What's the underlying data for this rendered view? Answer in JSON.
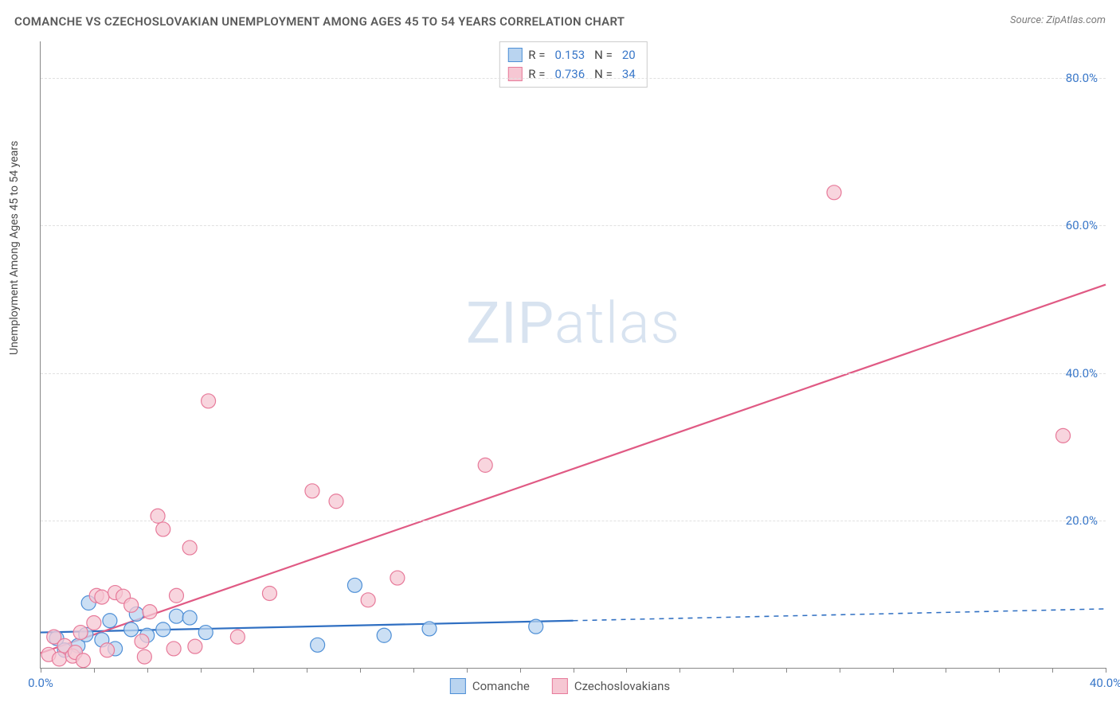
{
  "title": "COMANCHE VS CZECHOSLOVAKIAN UNEMPLOYMENT AMONG AGES 45 TO 54 YEARS CORRELATION CHART",
  "source": "Source: ZipAtlas.com",
  "y_axis_label": "Unemployment Among Ages 45 to 54 years",
  "watermark_a": "ZIP",
  "watermark_b": "atlas",
  "chart": {
    "type": "scatter",
    "background_color": "#ffffff",
    "grid_color": "#e0e0e0",
    "axis_color": "#888888",
    "tick_label_color": "#3a78c9",
    "tick_fontsize": 15,
    "title_fontsize": 15,
    "title_color": "#5a5a5a",
    "xlim": [
      0,
      40
    ],
    "ylim": [
      0,
      85
    ],
    "y_ticks": [
      20,
      40,
      60,
      80
    ],
    "y_tick_labels": [
      "20.0%",
      "40.0%",
      "60.0%",
      "80.0%"
    ],
    "x_ticks": [
      0,
      20,
      40
    ],
    "x_tick_labels": [
      "0.0%",
      "",
      "40.0%"
    ],
    "x_minor_tick_step": 2,
    "marker_radius": 9,
    "marker_stroke_width": 1.2,
    "line_width": 2.2,
    "series": [
      {
        "name": "Comanche",
        "color_fill": "#b9d4f0",
        "color_stroke": "#4e8fd6",
        "line_color": "#2f6fc2",
        "R": "0.153",
        "N": "20",
        "trend": {
          "y_at_x0": 4.8,
          "y_at_x40": 8.0,
          "solid_until_x": 20
        },
        "points": [
          [
            0.6,
            4.0
          ],
          [
            0.9,
            2.4
          ],
          [
            1.4,
            3.0
          ],
          [
            1.7,
            4.5
          ],
          [
            1.8,
            8.8
          ],
          [
            2.3,
            3.8
          ],
          [
            2.6,
            6.4
          ],
          [
            2.8,
            2.6
          ],
          [
            3.4,
            5.2
          ],
          [
            3.6,
            7.3
          ],
          [
            4.0,
            4.4
          ],
          [
            4.6,
            5.2
          ],
          [
            5.1,
            7.0
          ],
          [
            5.6,
            6.8
          ],
          [
            6.2,
            4.8
          ],
          [
            10.4,
            3.1
          ],
          [
            11.8,
            11.2
          ],
          [
            12.9,
            4.4
          ],
          [
            14.6,
            5.3
          ],
          [
            18.6,
            5.6
          ]
        ]
      },
      {
        "name": "Czechoslovakians",
        "color_fill": "#f6c7d3",
        "color_stroke": "#e77a9a",
        "line_color": "#e05a84",
        "R": "0.736",
        "N": "34",
        "trend": {
          "y_at_x0": 2.0,
          "y_at_x40": 52.0,
          "solid_until_x": 40
        },
        "points": [
          [
            0.3,
            1.8
          ],
          [
            0.5,
            4.2
          ],
          [
            0.7,
            1.2
          ],
          [
            0.9,
            3.0
          ],
          [
            1.2,
            1.6
          ],
          [
            1.3,
            2.1
          ],
          [
            1.6,
            1.0
          ],
          [
            1.5,
            4.8
          ],
          [
            2.0,
            6.1
          ],
          [
            2.1,
            9.8
          ],
          [
            2.3,
            9.6
          ],
          [
            2.5,
            2.4
          ],
          [
            2.8,
            10.2
          ],
          [
            3.1,
            9.7
          ],
          [
            3.4,
            8.5
          ],
          [
            3.8,
            3.6
          ],
          [
            3.9,
            1.5
          ],
          [
            4.1,
            7.6
          ],
          [
            4.4,
            20.6
          ],
          [
            4.6,
            18.8
          ],
          [
            5.0,
            2.6
          ],
          [
            5.1,
            9.8
          ],
          [
            5.6,
            16.3
          ],
          [
            5.8,
            2.9
          ],
          [
            6.3,
            36.2
          ],
          [
            7.4,
            4.2
          ],
          [
            8.6,
            10.1
          ],
          [
            10.2,
            24.0
          ],
          [
            11.1,
            22.6
          ],
          [
            12.3,
            9.2
          ],
          [
            13.4,
            12.2
          ],
          [
            16.7,
            27.5
          ],
          [
            29.8,
            64.5
          ],
          [
            38.4,
            31.5
          ]
        ]
      }
    ]
  },
  "stats_box": {
    "r_label": "R =",
    "n_label": "N ="
  },
  "legend": {
    "items": [
      "Comanche",
      "Czechoslovakians"
    ]
  }
}
